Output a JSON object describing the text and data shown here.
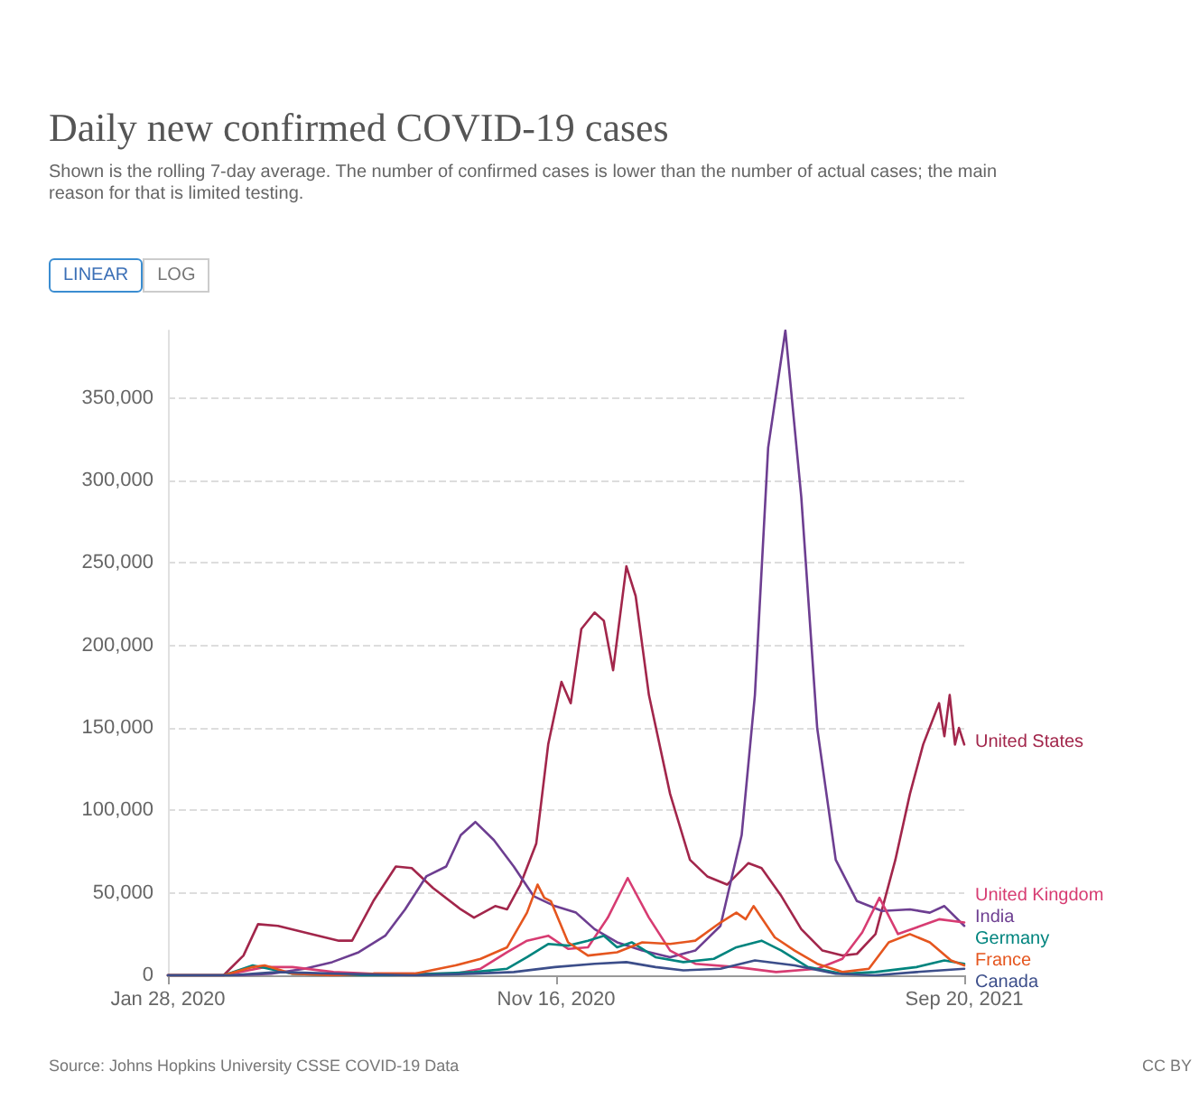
{
  "chart_data": {
    "type": "line",
    "title": "Daily new confirmed COVID-19 cases",
    "subtitle": "Shown is the rolling 7-day average. The number of confirmed cases is lower than the number of actual cases; the main reason for that is limited testing.",
    "annotations": [
      "LINEAR",
      "LOG",
      "Source: Johns Hopkins University CSSE COVID-19 Data",
      "CC BY"
    ],
    "xlim": [
      "2020-01-28",
      "2021-09-20"
    ],
    "xticks": [
      {
        "value": "2020-01-28",
        "label": "Jan 28, 2020"
      },
      {
        "value": "2020-11-16",
        "label": "Nov 16, 2020"
      },
      {
        "value": "2021-09-20",
        "label": "Sep 20, 2021"
      }
    ],
    "ylim": [
      0,
      391000
    ],
    "yticks": [
      {
        "value": 0,
        "label": "0"
      },
      {
        "value": 50000,
        "label": "50,000"
      },
      {
        "value": 100000,
        "label": "100,000"
      },
      {
        "value": 150000,
        "label": "150,000"
      },
      {
        "value": 200000,
        "label": "200,000"
      },
      {
        "value": 250000,
        "label": "250,000"
      },
      {
        "value": 300000,
        "label": "300,000"
      },
      {
        "value": 350000,
        "label": "350,000"
      }
    ],
    "grid": "y",
    "legend": false,
    "marker": "none",
    "line_style": "solid",
    "series": [
      {
        "name": "United States",
        "color": "#a2264b",
        "x": [
          "2020-01-28",
          "2020-03-10",
          "2020-03-25",
          "2020-04-05",
          "2020-04-20",
          "2020-05-15",
          "2020-06-05",
          "2020-06-15",
          "2020-07-01",
          "2020-07-18",
          "2020-07-30",
          "2020-08-15",
          "2020-09-05",
          "2020-09-15",
          "2020-10-01",
          "2020-10-10",
          "2020-10-20",
          "2020-11-01",
          "2020-11-10",
          "2020-11-20",
          "2020-11-27",
          "2020-12-05",
          "2020-12-15",
          "2020-12-22",
          "2020-12-29",
          "2021-01-08",
          "2021-01-15",
          "2021-01-25",
          "2021-02-10",
          "2021-02-25",
          "2021-03-10",
          "2021-03-25",
          "2021-04-10",
          "2021-04-20",
          "2021-05-05",
          "2021-05-20",
          "2021-06-05",
          "2021-06-20",
          "2021-07-01",
          "2021-07-15",
          "2021-07-30",
          "2021-08-10",
          "2021-08-20",
          "2021-09-01",
          "2021-09-05",
          "2021-09-09",
          "2021-09-13",
          "2021-09-16",
          "2021-09-20"
        ],
        "values": [
          0,
          0,
          12000,
          31000,
          30000,
          25000,
          21000,
          21000,
          45000,
          66000,
          65000,
          53000,
          40000,
          35000,
          42000,
          40000,
          55000,
          80000,
          140000,
          178000,
          165000,
          210000,
          220000,
          215000,
          185000,
          248000,
          230000,
          170000,
          110000,
          70000,
          60000,
          55000,
          68000,
          65000,
          48000,
          28000,
          15000,
          12000,
          13000,
          25000,
          70000,
          110000,
          140000,
          165000,
          145000,
          170000,
          140000,
          150000,
          140000
        ]
      },
      {
        "name": "India",
        "color": "#6d3e91",
        "x": [
          "2020-01-28",
          "2020-03-20",
          "2020-04-15",
          "2020-05-10",
          "2020-05-31",
          "2020-06-20",
          "2020-07-10",
          "2020-07-25",
          "2020-08-10",
          "2020-08-25",
          "2020-09-05",
          "2020-09-16",
          "2020-09-30",
          "2020-10-15",
          "2020-10-30",
          "2020-11-15",
          "2020-12-01",
          "2020-12-15",
          "2021-01-01",
          "2021-01-20",
          "2021-02-10",
          "2021-03-01",
          "2021-03-20",
          "2021-04-05",
          "2021-04-15",
          "2021-04-25",
          "2021-05-08",
          "2021-05-20",
          "2021-06-01",
          "2021-06-15",
          "2021-07-01",
          "2021-07-20",
          "2021-08-10",
          "2021-08-25",
          "2021-09-05",
          "2021-09-20"
        ],
        "values": [
          0,
          0,
          1000,
          4000,
          8000,
          14000,
          24000,
          40000,
          60000,
          66000,
          85000,
          93000,
          82000,
          66000,
          48000,
          42000,
          38000,
          28000,
          20000,
          15000,
          11000,
          15000,
          30000,
          85000,
          170000,
          320000,
          391000,
          290000,
          150000,
          70000,
          45000,
          39000,
          40000,
          38000,
          42000,
          30000
        ]
      },
      {
        "name": "United Kingdom",
        "color": "#d73c72",
        "x": [
          "2020-01-28",
          "2020-03-10",
          "2020-04-10",
          "2020-05-01",
          "2020-06-01",
          "2020-07-01",
          "2020-08-01",
          "2020-09-01",
          "2020-09-20",
          "2020-10-10",
          "2020-10-25",
          "2020-11-10",
          "2020-11-25",
          "2020-12-10",
          "2020-12-25",
          "2021-01-09",
          "2021-01-25",
          "2021-02-10",
          "2021-03-01",
          "2021-04-01",
          "2021-05-01",
          "2021-06-01",
          "2021-06-20",
          "2021-07-05",
          "2021-07-18",
          "2021-08-01",
          "2021-08-15",
          "2021-09-01",
          "2021-09-20"
        ],
        "values": [
          0,
          0,
          5000,
          5000,
          2000,
          1000,
          1000,
          1000,
          4000,
          14000,
          21000,
          24000,
          16000,
          17000,
          35000,
          59000,
          35000,
          15000,
          7000,
          5000,
          2000,
          4000,
          10000,
          26000,
          47000,
          25000,
          29000,
          34000,
          32000
        ]
      },
      {
        "name": "Germany",
        "color": "#00847e",
        "x": [
          "2020-01-28",
          "2020-03-10",
          "2020-04-01",
          "2020-05-01",
          "2020-06-01",
          "2020-07-15",
          "2020-08-15",
          "2020-09-15",
          "2020-10-10",
          "2020-10-25",
          "2020-11-10",
          "2020-11-25",
          "2020-12-10",
          "2020-12-22",
          "2021-01-01",
          "2021-01-12",
          "2021-01-30",
          "2021-02-20",
          "2021-03-15",
          "2021-04-01",
          "2021-04-20",
          "2021-05-05",
          "2021-05-25",
          "2021-06-20",
          "2021-07-15",
          "2021-08-15",
          "2021-09-05",
          "2021-09-20"
        ],
        "values": [
          0,
          0,
          6000,
          1000,
          0,
          0,
          1000,
          2000,
          4000,
          11000,
          19000,
          18000,
          21000,
          24000,
          17000,
          20000,
          11000,
          8000,
          10000,
          17000,
          21000,
          15000,
          5000,
          1000,
          2000,
          5000,
          9000,
          7000
        ]
      },
      {
        "name": "France",
        "color": "#e5561f",
        "x": [
          "2020-01-28",
          "2020-03-10",
          "2020-04-01",
          "2020-04-10",
          "2020-05-01",
          "2020-06-01",
          "2020-07-01",
          "2020-08-01",
          "2020-09-01",
          "2020-09-20",
          "2020-10-10",
          "2020-10-25",
          "2020-11-02",
          "2020-11-07",
          "2020-11-12",
          "2020-11-25",
          "2020-12-10",
          "2021-01-01",
          "2021-01-20",
          "2021-02-10",
          "2021-03-01",
          "2021-03-20",
          "2021-04-01",
          "2021-04-08",
          "2021-04-14",
          "2021-04-30",
          "2021-05-15",
          "2021-06-01",
          "2021-06-20",
          "2021-07-10",
          "2021-07-25",
          "2021-08-10",
          "2021-08-25",
          "2021-09-10",
          "2021-09-20"
        ],
        "values": [
          0,
          0,
          5000,
          6000,
          1000,
          0,
          1000,
          1000,
          6000,
          10000,
          17000,
          38000,
          55000,
          47000,
          45000,
          20000,
          12000,
          14000,
          20000,
          19000,
          21000,
          32000,
          38000,
          34000,
          42000,
          23000,
          15000,
          7000,
          2000,
          4000,
          20000,
          25000,
          20000,
          9000,
          6000
        ]
      },
      {
        "name": "Canada",
        "color": "#3c4e8a",
        "x": [
          "2020-01-28",
          "2020-03-15",
          "2020-04-20",
          "2020-06-01",
          "2020-08-01",
          "2020-09-15",
          "2020-10-15",
          "2020-11-15",
          "2020-12-15",
          "2021-01-08",
          "2021-01-30",
          "2021-02-20",
          "2021-03-20",
          "2021-04-15",
          "2021-05-15",
          "2021-06-15",
          "2021-07-15",
          "2021-08-15",
          "2021-09-20"
        ],
        "values": [
          0,
          0,
          2000,
          1000,
          0,
          1000,
          2000,
          5000,
          7000,
          8000,
          5000,
          3000,
          4000,
          9000,
          6000,
          1000,
          0,
          2000,
          4000
        ]
      }
    ]
  }
}
